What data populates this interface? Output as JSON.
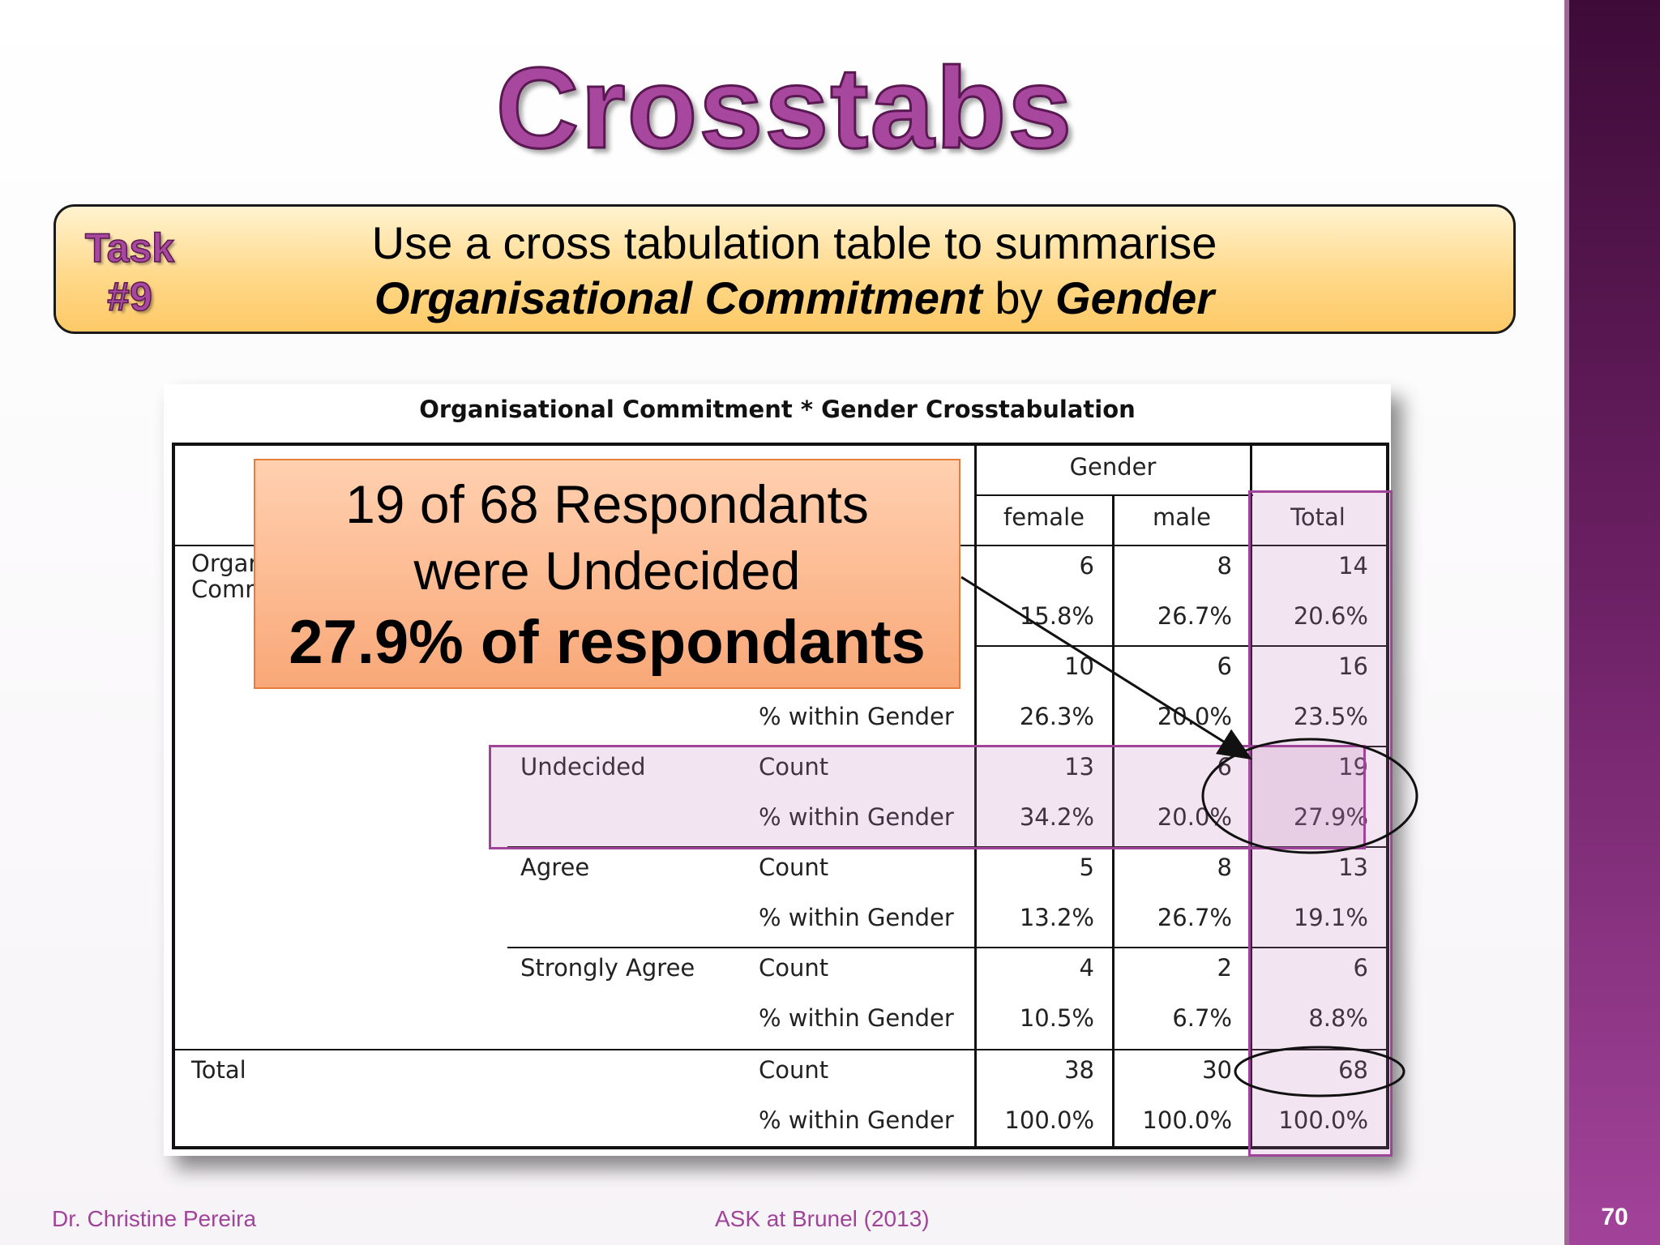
{
  "title": "Crosstabs",
  "task": {
    "label_line1": "Task",
    "label_line2": "#9",
    "line1": "Use a cross tabulation table to summarise",
    "line2_part1": "Organisational Commitment",
    "line2_part2": " by ",
    "line2_part3": "Gender"
  },
  "table": {
    "caption": "Organisational Commitment * Gender Crosstabulation",
    "group_header": "Gender",
    "columns": [
      "female",
      "male",
      "Total"
    ],
    "row_var_partial": [
      "Orgar",
      "Comr"
    ],
    "rows": [
      {
        "label": "",
        "count": [
          "6",
          "8",
          "14"
        ],
        "pct": [
          "15.8%",
          "26.7%",
          "20.6%"
        ]
      },
      {
        "label": "",
        "count": [
          "10",
          "6",
          "16"
        ],
        "pct": [
          "26.3%",
          "20.0%",
          "23.5%"
        ]
      },
      {
        "label": "Undecided",
        "count": [
          "13",
          "6",
          "19"
        ],
        "pct": [
          "34.2%",
          "20.0%",
          "27.9%"
        ]
      },
      {
        "label": "Agree",
        "count": [
          "5",
          "8",
          "13"
        ],
        "pct": [
          "13.2%",
          "26.7%",
          "19.1%"
        ]
      },
      {
        "label": "Strongly Agree",
        "count": [
          "4",
          "2",
          "6"
        ],
        "pct": [
          "10.5%",
          "6.7%",
          "8.8%"
        ]
      }
    ],
    "total": {
      "label": "Total",
      "count": [
        "38",
        "30",
        "68"
      ],
      "pct": [
        "100.0%",
        "100.0%",
        "100.0%"
      ]
    },
    "stat_count": "Count",
    "stat_pct": "% within Gender"
  },
  "callout": {
    "line1": "19 of 68 Respondants",
    "line2": "were Undecided",
    "line3": "27.9% of respondants"
  },
  "footer": {
    "author": "Dr. Christine Pereira",
    "source": "ASK at Brunel (2013)",
    "page": "70"
  },
  "colors": {
    "accent": "#a8479e",
    "highlight_border": "#a0449a",
    "callout_fill": "#fcb88e",
    "task_fill": "#ffd98a"
  }
}
